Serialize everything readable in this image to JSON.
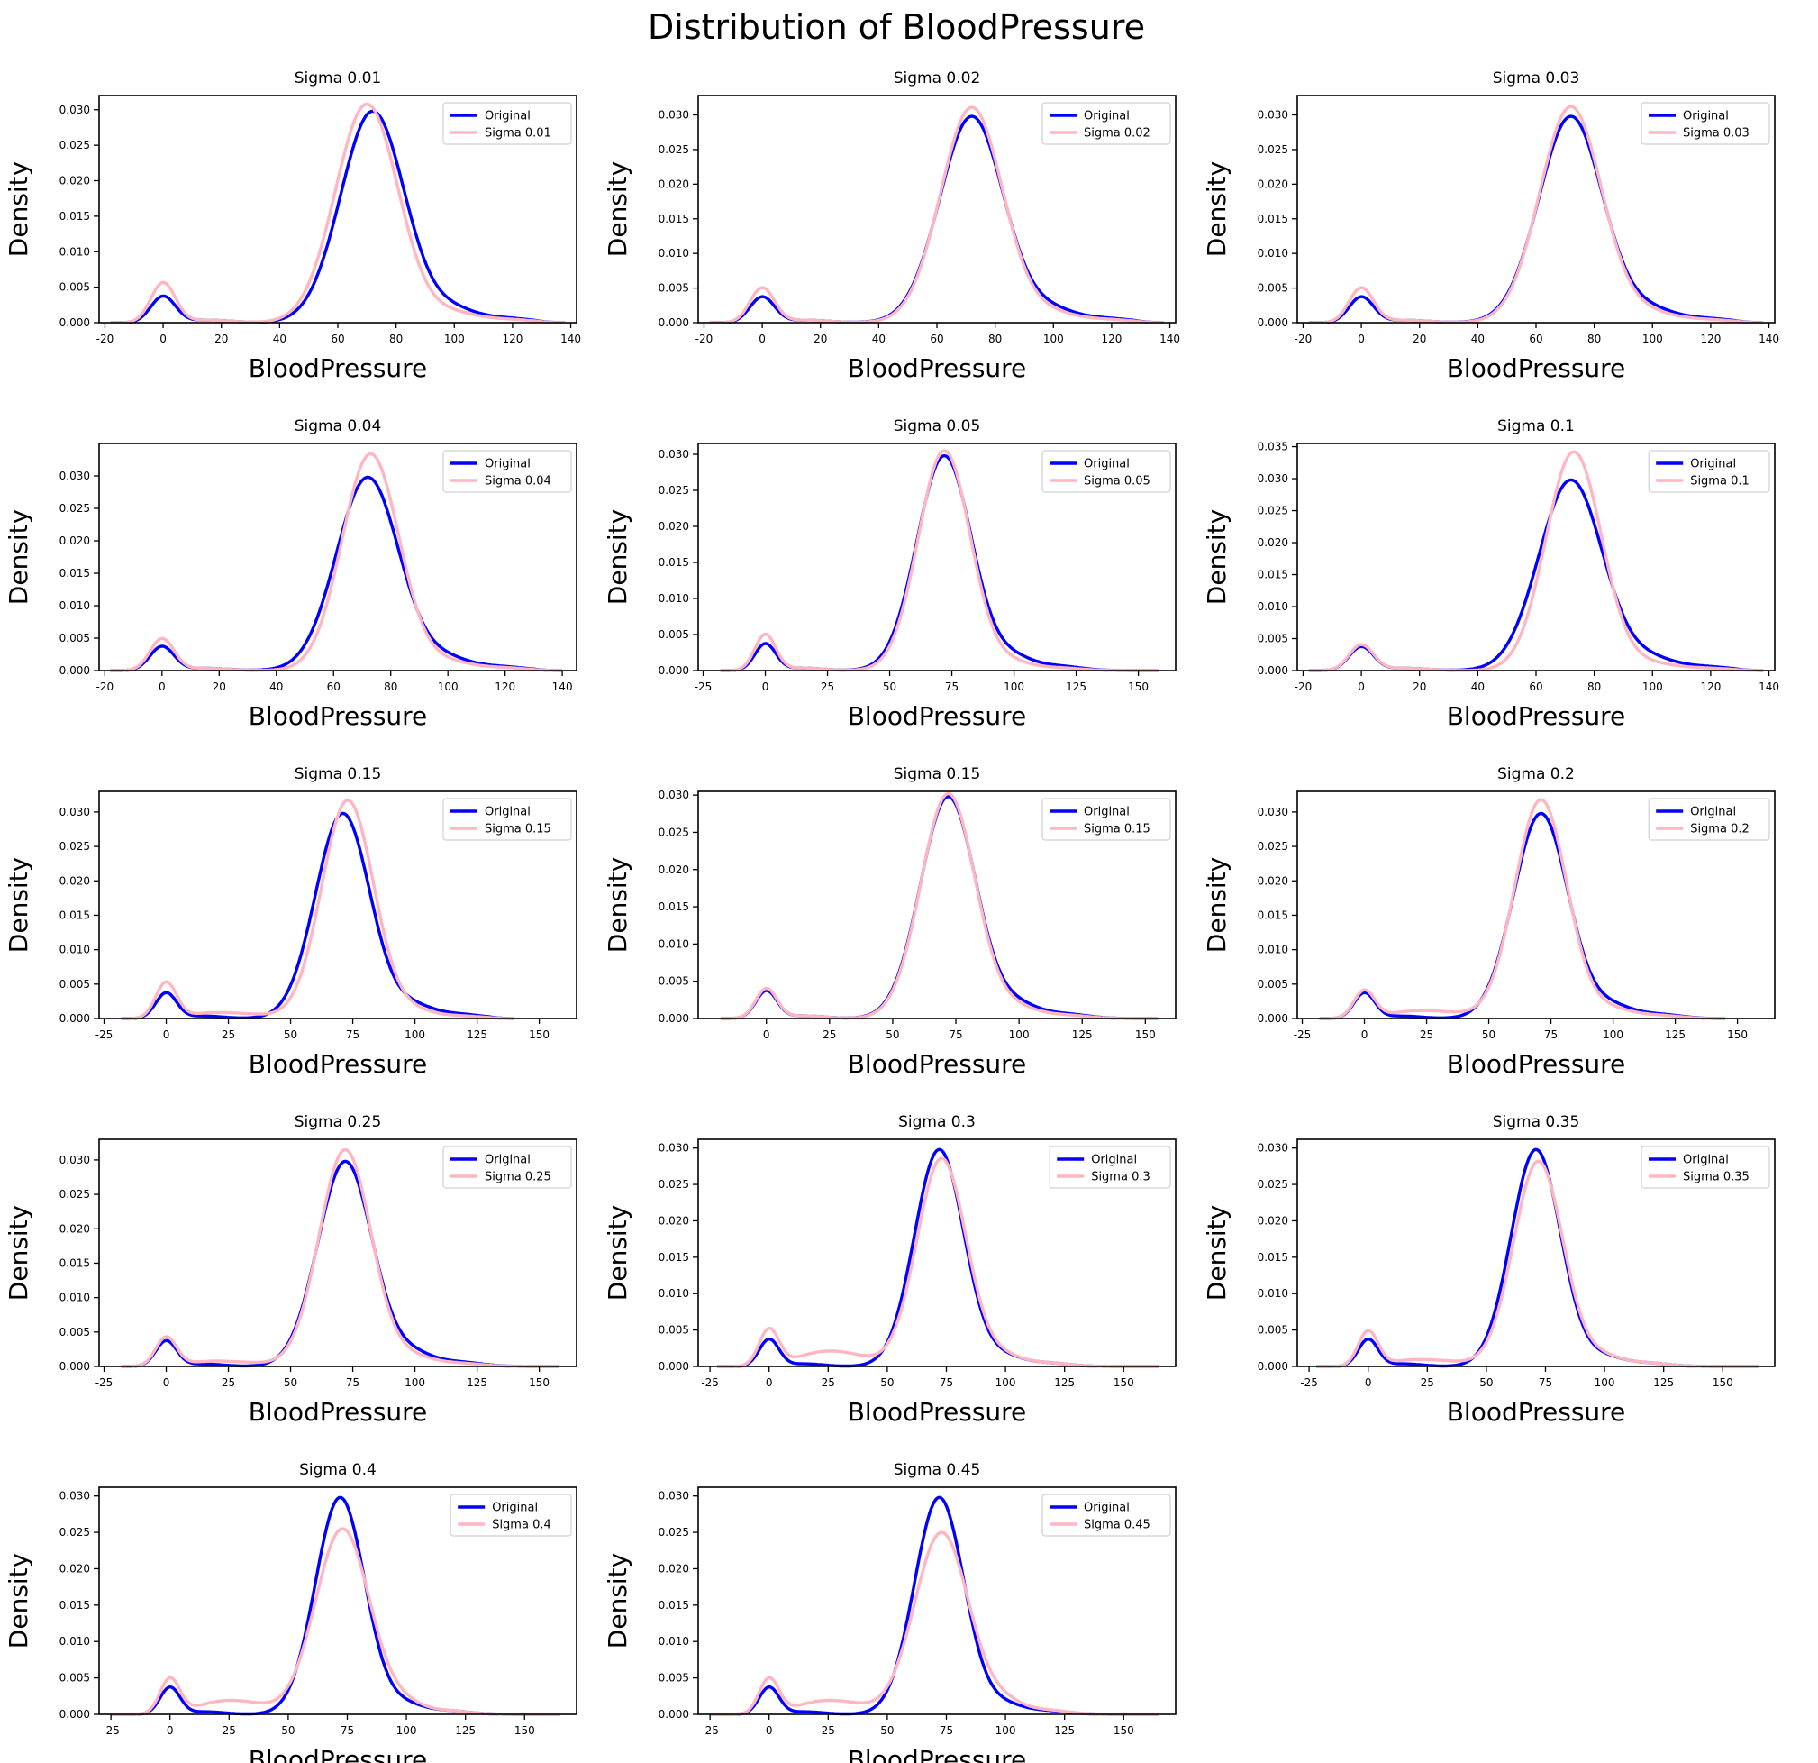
{
  "figure": {
    "title": "Distribution of BloodPressure"
  },
  "chart_data": [
    {
      "type": "line",
      "title": "Sigma 0.01",
      "xlabel": "BloodPressure",
      "ylabel": "Density",
      "xlim": [
        -22,
        142
      ],
      "ylim": [
        0,
        0.032
      ],
      "xticks": [
        -20,
        0,
        20,
        40,
        60,
        80,
        100,
        120,
        140
      ],
      "yticks": [
        0,
        0.005,
        0.01,
        0.015,
        0.02,
        0.025,
        0.03
      ],
      "tick_labels_y": [
        "0.000",
        "0.005",
        "0.010",
        "0.015",
        "0.020",
        "0.025",
        "0.030"
      ],
      "x_range": [
        -18,
        138
      ],
      "legend": "top-right",
      "series": [
        {
          "name": "Original",
          "color": "#0000ff",
          "peak_x": 72,
          "peak_y": 0.0298,
          "low_x": 0,
          "low_y": 0.0037,
          "sigma": 11,
          "shift": 0,
          "tail": 0.002
        },
        {
          "name": "Sigma 0.01",
          "color": "#ffb6c1",
          "peak_x": 70,
          "peak_y": 0.0308,
          "low_x": 0,
          "low_y": 0.0056,
          "sigma": 10.8,
          "shift": 0,
          "tail": 0.0015
        }
      ]
    },
    {
      "type": "line",
      "title": "Sigma 0.02",
      "xlabel": "BloodPressure",
      "ylabel": "Density",
      "xlim": [
        -22,
        142
      ],
      "ylim": [
        0,
        0.0328
      ],
      "xticks": [
        -20,
        0,
        20,
        40,
        60,
        80,
        100,
        120,
        140
      ],
      "yticks": [
        0,
        0.005,
        0.01,
        0.015,
        0.02,
        0.025,
        0.03
      ],
      "tick_labels_y": [
        "0.000",
        "0.005",
        "0.010",
        "0.015",
        "0.020",
        "0.025",
        "0.030"
      ],
      "x_range": [
        -18,
        138
      ],
      "legend": "top-right",
      "series": [
        {
          "name": "Original",
          "color": "#0000ff",
          "peak_x": 72,
          "peak_y": 0.0298,
          "low_x": 0,
          "low_y": 0.0037,
          "sigma": 11,
          "shift": 0,
          "tail": 0.002
        },
        {
          "name": "Sigma 0.02",
          "color": "#ffb6c1",
          "peak_x": 72,
          "peak_y": 0.0311,
          "low_x": 0,
          "low_y": 0.005,
          "sigma": 10.7,
          "shift": 0,
          "tail": 0.0015
        }
      ]
    },
    {
      "type": "line",
      "title": "Sigma 0.03",
      "xlabel": "BloodPressure",
      "ylabel": "Density",
      "xlim": [
        -22,
        142
      ],
      "ylim": [
        0,
        0.0328
      ],
      "xticks": [
        -20,
        0,
        20,
        40,
        60,
        80,
        100,
        120,
        140
      ],
      "yticks": [
        0,
        0.005,
        0.01,
        0.015,
        0.02,
        0.025,
        0.03
      ],
      "tick_labels_y": [
        "0.000",
        "0.005",
        "0.010",
        "0.015",
        "0.020",
        "0.025",
        "0.030"
      ],
      "x_range": [
        -18,
        138
      ],
      "legend": "top-right",
      "series": [
        {
          "name": "Original",
          "color": "#0000ff",
          "peak_x": 72,
          "peak_y": 0.0298,
          "low_x": 0,
          "low_y": 0.0037,
          "sigma": 11,
          "shift": 0,
          "tail": 0.002
        },
        {
          "name": "Sigma 0.03",
          "color": "#ffb6c1",
          "peak_x": 72,
          "peak_y": 0.0312,
          "low_x": 0,
          "low_y": 0.005,
          "sigma": 10.7,
          "shift": 0,
          "tail": 0.0015
        }
      ]
    },
    {
      "type": "line",
      "title": "Sigma 0.04",
      "xlabel": "BloodPressure",
      "ylabel": "Density",
      "xlim": [
        -22,
        145
      ],
      "ylim": [
        0,
        0.035
      ],
      "xticks": [
        -20,
        0,
        20,
        40,
        60,
        80,
        100,
        120,
        140
      ],
      "yticks": [
        0,
        0.005,
        0.01,
        0.015,
        0.02,
        0.025,
        0.03
      ],
      "tick_labels_y": [
        "0.000",
        "0.005",
        "0.010",
        "0.015",
        "0.020",
        "0.025",
        "0.030"
      ],
      "x_range": [
        -18,
        140
      ],
      "legend": "top-right",
      "series": [
        {
          "name": "Original",
          "color": "#0000ff",
          "peak_x": 72,
          "peak_y": 0.0298,
          "low_x": 0,
          "low_y": 0.0037,
          "sigma": 11,
          "shift": 0,
          "tail": 0.002
        },
        {
          "name": "Sigma 0.04",
          "color": "#ffb6c1",
          "peak_x": 73,
          "peak_y": 0.0334,
          "low_x": 0,
          "low_y": 0.0049,
          "sigma": 10,
          "shift": 0,
          "tail": 0.0015
        }
      ]
    },
    {
      "type": "line",
      "title": "Sigma 0.05",
      "xlabel": "BloodPressure",
      "ylabel": "Density",
      "xlim": [
        -27,
        165
      ],
      "ylim": [
        0,
        0.0315
      ],
      "xticks": [
        -25,
        0,
        25,
        50,
        75,
        100,
        125,
        150
      ],
      "yticks": [
        0,
        0.005,
        0.01,
        0.015,
        0.02,
        0.025,
        0.03
      ],
      "tick_labels_y": [
        "0.000",
        "0.005",
        "0.010",
        "0.015",
        "0.020",
        "0.025",
        "0.030"
      ],
      "x_range": [
        -18,
        158
      ],
      "legend": "top-right",
      "series": [
        {
          "name": "Original",
          "color": "#0000ff",
          "peak_x": 72,
          "peak_y": 0.0298,
          "low_x": 0,
          "low_y": 0.0037,
          "sigma": 11,
          "shift": 0,
          "tail": 0.002
        },
        {
          "name": "Sigma 0.05",
          "color": "#ffb6c1",
          "peak_x": 72,
          "peak_y": 0.0305,
          "low_x": 0,
          "low_y": 0.005,
          "sigma": 10.5,
          "shift": 0,
          "tail": 0.0012
        }
      ]
    },
    {
      "type": "line",
      "title": "Sigma 0.1",
      "xlabel": "BloodPressure",
      "ylabel": "Density",
      "xlim": [
        -22,
        142
      ],
      "ylim": [
        0,
        0.0355
      ],
      "xticks": [
        -20,
        0,
        20,
        40,
        60,
        80,
        100,
        120,
        140
      ],
      "yticks": [
        0,
        0.005,
        0.01,
        0.015,
        0.02,
        0.025,
        0.03,
        0.035
      ],
      "tick_labels_y": [
        "0.000",
        "0.005",
        "0.010",
        "0.015",
        "0.020",
        "0.025",
        "0.030",
        "0.035"
      ],
      "x_range": [
        -18,
        138
      ],
      "legend": "top-right",
      "series": [
        {
          "name": "Original",
          "color": "#0000ff",
          "peak_x": 72,
          "peak_y": 0.0298,
          "low_x": 0,
          "low_y": 0.0037,
          "sigma": 11,
          "shift": 0,
          "tail": 0.002
        },
        {
          "name": "Sigma 0.1",
          "color": "#ffb6c1",
          "peak_x": 73,
          "peak_y": 0.0342,
          "low_x": 0,
          "low_y": 0.004,
          "sigma": 9.6,
          "shift": 0,
          "tail": 0.0012
        }
      ]
    },
    {
      "type": "line",
      "title": "Sigma 0.15",
      "xlabel": "BloodPressure",
      "ylabel": "Density",
      "xlim": [
        -27,
        165
      ],
      "ylim": [
        0,
        0.033
      ],
      "xticks": [
        -25,
        0,
        25,
        50,
        75,
        100,
        125,
        150
      ],
      "yticks": [
        0,
        0.005,
        0.01,
        0.015,
        0.02,
        0.025,
        0.03
      ],
      "tick_labels_y": [
        "0.000",
        "0.005",
        "0.010",
        "0.015",
        "0.020",
        "0.025",
        "0.030"
      ],
      "x_range": [
        -18,
        140
      ],
      "legend": "top-right",
      "series": [
        {
          "name": "Original",
          "color": "#0000ff",
          "peak_x": 71,
          "peak_y": 0.0298,
          "low_x": 0,
          "low_y": 0.0037,
          "sigma": 11,
          "shift": 0,
          "tail": 0.002
        },
        {
          "name": "Sigma 0.15",
          "color": "#ffb6c1",
          "peak_x": 73,
          "peak_y": 0.0317,
          "low_x": 0,
          "low_y": 0.0052,
          "sigma": 10.5,
          "shift": 0.0007,
          "tail": 0.0012
        }
      ]
    },
    {
      "type": "line",
      "title": "Sigma 0.15",
      "xlabel": "BloodPressure",
      "ylabel": "Density",
      "xlim": [
        -27,
        162
      ],
      "ylim": [
        0,
        0.0305
      ],
      "xticks": [
        0,
        25,
        50,
        75,
        100,
        125,
        150
      ],
      "yticks": [
        0,
        0.005,
        0.01,
        0.015,
        0.02,
        0.025,
        0.03
      ],
      "tick_labels_y": [
        "0.000",
        "0.005",
        "0.010",
        "0.015",
        "0.020",
        "0.025",
        "0.030"
      ],
      "x_range": [
        -18,
        155
      ],
      "legend": "top-right",
      "series": [
        {
          "name": "Original",
          "color": "#0000ff",
          "peak_x": 72,
          "peak_y": 0.0298,
          "low_x": 0,
          "low_y": 0.0037,
          "sigma": 11,
          "shift": 0,
          "tail": 0.002
        },
        {
          "name": "Sigma 0.15",
          "color": "#ffb6c1",
          "peak_x": 72,
          "peak_y": 0.0302,
          "low_x": 0,
          "low_y": 0.004,
          "sigma": 10.8,
          "shift": 0,
          "tail": 0.0015
        }
      ]
    },
    {
      "type": "line",
      "title": "Sigma 0.2",
      "xlabel": "BloodPressure",
      "ylabel": "Density",
      "xlim": [
        -27,
        165
      ],
      "ylim": [
        0,
        0.033
      ],
      "xticks": [
        -25,
        0,
        25,
        50,
        75,
        100,
        125,
        150
      ],
      "yticks": [
        0,
        0.005,
        0.01,
        0.015,
        0.02,
        0.025,
        0.03
      ],
      "tick_labels_y": [
        "0.000",
        "0.005",
        "0.010",
        "0.015",
        "0.020",
        "0.025",
        "0.030"
      ],
      "x_range": [
        -18,
        145
      ],
      "legend": "top-right",
      "series": [
        {
          "name": "Original",
          "color": "#0000ff",
          "peak_x": 71,
          "peak_y": 0.0298,
          "low_x": 0,
          "low_y": 0.0037,
          "sigma": 11,
          "shift": 0,
          "tail": 0.002
        },
        {
          "name": "Sigma 0.2",
          "color": "#ffb6c1",
          "peak_x": 71,
          "peak_y": 0.0318,
          "low_x": 0,
          "low_y": 0.004,
          "sigma": 10.5,
          "shift": 0.001,
          "tail": 0.0015
        }
      ]
    },
    {
      "type": "line",
      "title": "Sigma 0.25",
      "xlabel": "BloodPressure",
      "ylabel": "Density",
      "xlim": [
        -27,
        165
      ],
      "ylim": [
        0,
        0.033
      ],
      "xticks": [
        -25,
        0,
        25,
        50,
        75,
        100,
        125,
        150
      ],
      "yticks": [
        0,
        0.005,
        0.01,
        0.015,
        0.02,
        0.025,
        0.03
      ],
      "tick_labels_y": [
        "0.000",
        "0.005",
        "0.010",
        "0.015",
        "0.020",
        "0.025",
        "0.030"
      ],
      "x_range": [
        -18,
        158
      ],
      "legend": "top-right",
      "series": [
        {
          "name": "Original",
          "color": "#0000ff",
          "peak_x": 72,
          "peak_y": 0.0298,
          "low_x": 0,
          "low_y": 0.0037,
          "sigma": 11,
          "shift": 0,
          "tail": 0.002
        },
        {
          "name": "Sigma 0.25",
          "color": "#ffb6c1",
          "peak_x": 72,
          "peak_y": 0.0315,
          "low_x": 0,
          "low_y": 0.0042,
          "sigma": 10.5,
          "shift": 0.0006,
          "tail": 0.0015
        }
      ]
    },
    {
      "type": "line",
      "title": "Sigma 0.3",
      "xlabel": "BloodPressure",
      "ylabel": "Density",
      "xlim": [
        -30,
        172
      ],
      "ylim": [
        0,
        0.0312
      ],
      "xticks": [
        -25,
        0,
        25,
        50,
        75,
        100,
        125,
        150
      ],
      "yticks": [
        0,
        0.005,
        0.01,
        0.015,
        0.02,
        0.025,
        0.03
      ],
      "tick_labels_y": [
        "0.000",
        "0.005",
        "0.010",
        "0.015",
        "0.020",
        "0.025",
        "0.030"
      ],
      "x_range": [
        -22,
        165
      ],
      "legend": "top-right",
      "series": [
        {
          "name": "Original",
          "color": "#0000ff",
          "peak_x": 72,
          "peak_y": 0.0298,
          "low_x": 0,
          "low_y": 0.0037,
          "sigma": 10.5,
          "shift": 0,
          "tail": 0.0015
        },
        {
          "name": "Sigma 0.3",
          "color": "#ffb6c1",
          "peak_x": 73,
          "peak_y": 0.0286,
          "low_x": 0,
          "low_y": 0.005,
          "sigma": 10.5,
          "shift": 0.002,
          "tail": 0.0015
        }
      ]
    },
    {
      "type": "line",
      "title": "Sigma 0.35",
      "xlabel": "BloodPressure",
      "ylabel": "Density",
      "xlim": [
        -30,
        172
      ],
      "ylim": [
        0,
        0.0312
      ],
      "xticks": [
        -25,
        0,
        25,
        50,
        75,
        100,
        125,
        150
      ],
      "yticks": [
        0,
        0.005,
        0.01,
        0.015,
        0.02,
        0.025,
        0.03
      ],
      "tick_labels_y": [
        "0.000",
        "0.005",
        "0.010",
        "0.015",
        "0.020",
        "0.025",
        "0.030"
      ],
      "x_range": [
        -22,
        165
      ],
      "legend": "top-right",
      "series": [
        {
          "name": "Original",
          "color": "#0000ff",
          "peak_x": 71,
          "peak_y": 0.0298,
          "low_x": 0,
          "low_y": 0.0037,
          "sigma": 10.5,
          "shift": 0,
          "tail": 0.0015
        },
        {
          "name": "Sigma 0.35",
          "color": "#ffb6c1",
          "peak_x": 72,
          "peak_y": 0.0282,
          "low_x": 0,
          "low_y": 0.0048,
          "sigma": 10.5,
          "shift": 0.0008,
          "tail": 0.0015
        }
      ]
    },
    {
      "type": "line",
      "title": "Sigma 0.4",
      "xlabel": "BloodPressure",
      "ylabel": "Density",
      "xlim": [
        -30,
        172
      ],
      "ylim": [
        0,
        0.0312
      ],
      "xticks": [
        -25,
        0,
        25,
        50,
        75,
        100,
        125,
        150
      ],
      "yticks": [
        0,
        0.005,
        0.01,
        0.015,
        0.02,
        0.025,
        0.03
      ],
      "tick_labels_y": [
        "0.000",
        "0.005",
        "0.010",
        "0.015",
        "0.020",
        "0.025",
        "0.030"
      ],
      "x_range": [
        -25,
        165
      ],
      "legend": "top-right",
      "series": [
        {
          "name": "Original",
          "color": "#0000ff",
          "peak_x": 72,
          "peak_y": 0.0298,
          "low_x": 0,
          "low_y": 0.0037,
          "sigma": 10.5,
          "shift": 0,
          "tail": 0.0015
        },
        {
          "name": "Sigma 0.4",
          "color": "#ffb6c1",
          "peak_x": 73,
          "peak_y": 0.0255,
          "low_x": 0,
          "low_y": 0.0048,
          "sigma": 11.5,
          "shift": 0.0018,
          "tail": 0.0015
        }
      ]
    },
    {
      "type": "line",
      "title": "Sigma 0.45",
      "xlabel": "BloodPressure",
      "ylabel": "Density",
      "xlim": [
        -30,
        172
      ],
      "ylim": [
        0,
        0.0312
      ],
      "xticks": [
        -25,
        0,
        25,
        50,
        75,
        100,
        125,
        150
      ],
      "yticks": [
        0,
        0.005,
        0.01,
        0.015,
        0.02,
        0.025,
        0.03
      ],
      "tick_labels_y": [
        "0.000",
        "0.005",
        "0.010",
        "0.015",
        "0.020",
        "0.025",
        "0.030"
      ],
      "x_range": [
        -25,
        165
      ],
      "legend": "top-right",
      "series": [
        {
          "name": "Original",
          "color": "#0000ff",
          "peak_x": 72,
          "peak_y": 0.0298,
          "low_x": 0,
          "low_y": 0.0037,
          "sigma": 10.5,
          "shift": 0,
          "tail": 0.0015
        },
        {
          "name": "Sigma 0.45",
          "color": "#ffb6c1",
          "peak_x": 73,
          "peak_y": 0.025,
          "low_x": 0,
          "low_y": 0.0048,
          "sigma": 11.5,
          "shift": 0.0018,
          "tail": 0.0018
        }
      ]
    }
  ]
}
